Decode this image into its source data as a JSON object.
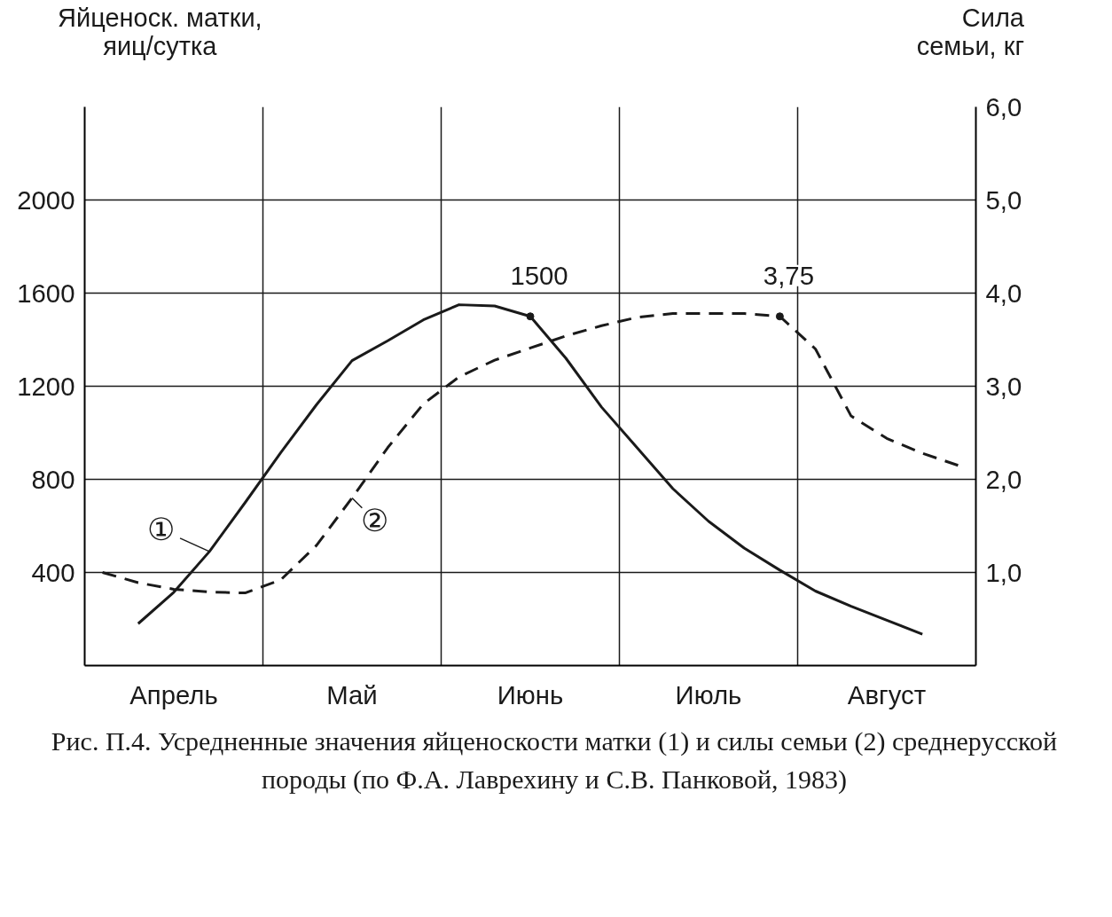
{
  "chart_data": {
    "type": "line",
    "ylabel": "Яйценоск. матки,\nяиц/сутка",
    "y2label": "Сила\nсемьи, кг",
    "categories": [
      null,
      null,
      "Апрель",
      null,
      null,
      null,
      null,
      "Май",
      null,
      null,
      null,
      null,
      "Июнь",
      null,
      null,
      null,
      null,
      "Июль",
      null,
      null,
      null,
      null,
      "Август",
      null,
      null
    ],
    "ylim": [
      0,
      2400
    ],
    "yticks": [
      400,
      800,
      1200,
      1600,
      2000
    ],
    "y2lim": [
      0,
      6
    ],
    "y2ticks": [
      {
        "value": 1,
        "label": "1,0"
      },
      {
        "value": 2,
        "label": "2,0"
      },
      {
        "value": 3,
        "label": "3,0"
      },
      {
        "value": 4,
        "label": "4,0"
      },
      {
        "value": 5,
        "label": "5,0"
      },
      {
        "value": 6,
        "label": "6,0"
      }
    ],
    "grid": true,
    "marker": "none",
    "series": [
      {
        "name": "①",
        "color": "#1a1a1a",
        "line_style": "solid",
        "values": [
          null,
          180,
          315,
          490,
          700,
          915,
          1120,
          1310,
          1395,
          1485,
          1550,
          1545,
          1500,
          1320,
          1110,
          935,
          760,
          620,
          505,
          410,
          320,
          255,
          195,
          135,
          null
        ],
        "value_labels": [
          null,
          null,
          null,
          null,
          null,
          null,
          null,
          null,
          null,
          null,
          null,
          null,
          "1500",
          null,
          null,
          null,
          null,
          null,
          null,
          null,
          null,
          null,
          null,
          null,
          null
        ]
      },
      {
        "name": "②",
        "color": "#1a1a1a",
        "line_style": "dashed",
        "axis": "y2",
        "values": [
          1.0,
          0.89,
          0.82,
          0.79,
          0.78,
          0.92,
          1.29,
          1.8,
          2.34,
          2.81,
          3.1,
          3.28,
          3.41,
          3.54,
          3.65,
          3.74,
          3.78,
          3.78,
          3.78,
          3.75,
          3.4,
          2.68,
          2.44,
          2.28,
          2.15
        ],
        "value_labels": [
          null,
          null,
          null,
          null,
          null,
          null,
          null,
          null,
          null,
          null,
          null,
          null,
          null,
          null,
          null,
          null,
          null,
          null,
          null,
          "3,75",
          null,
          null,
          null,
          null,
          null
        ]
      }
    ],
    "annotations": [
      "Рис. П.4. Усредненные значения яйценоскости матки (1) и силы семьи (2) среднерусской породы (по Ф.А. Лаврехину и С.В. Панковой, 1983)"
    ]
  }
}
